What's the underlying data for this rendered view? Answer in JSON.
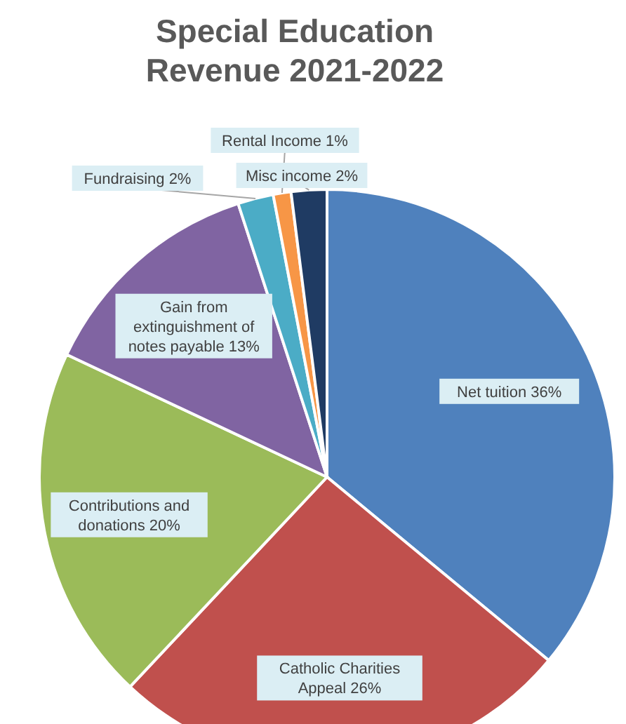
{
  "chart_data": {
    "type": "pie",
    "title": "Special Education Revenue 2021-2022",
    "categories": [
      "Net tuition",
      "Catholic Charities Appeal",
      "Contributions and donations",
      "Gain from extinguishment of notes payable",
      "Fundraising",
      "Rental Income",
      "Misc income"
    ],
    "values": [
      36,
      26,
      20,
      13,
      2,
      1,
      2
    ],
    "value_labels": [
      "36%",
      "26%",
      "20%",
      "13%",
      "2%",
      "1%",
      "2%"
    ],
    "colors": [
      "#4f81bd",
      "#c0504d",
      "#9bbb59",
      "#8064a2",
      "#4bacc6",
      "#f79646",
      "#1f3b63"
    ],
    "legend": false
  }
}
